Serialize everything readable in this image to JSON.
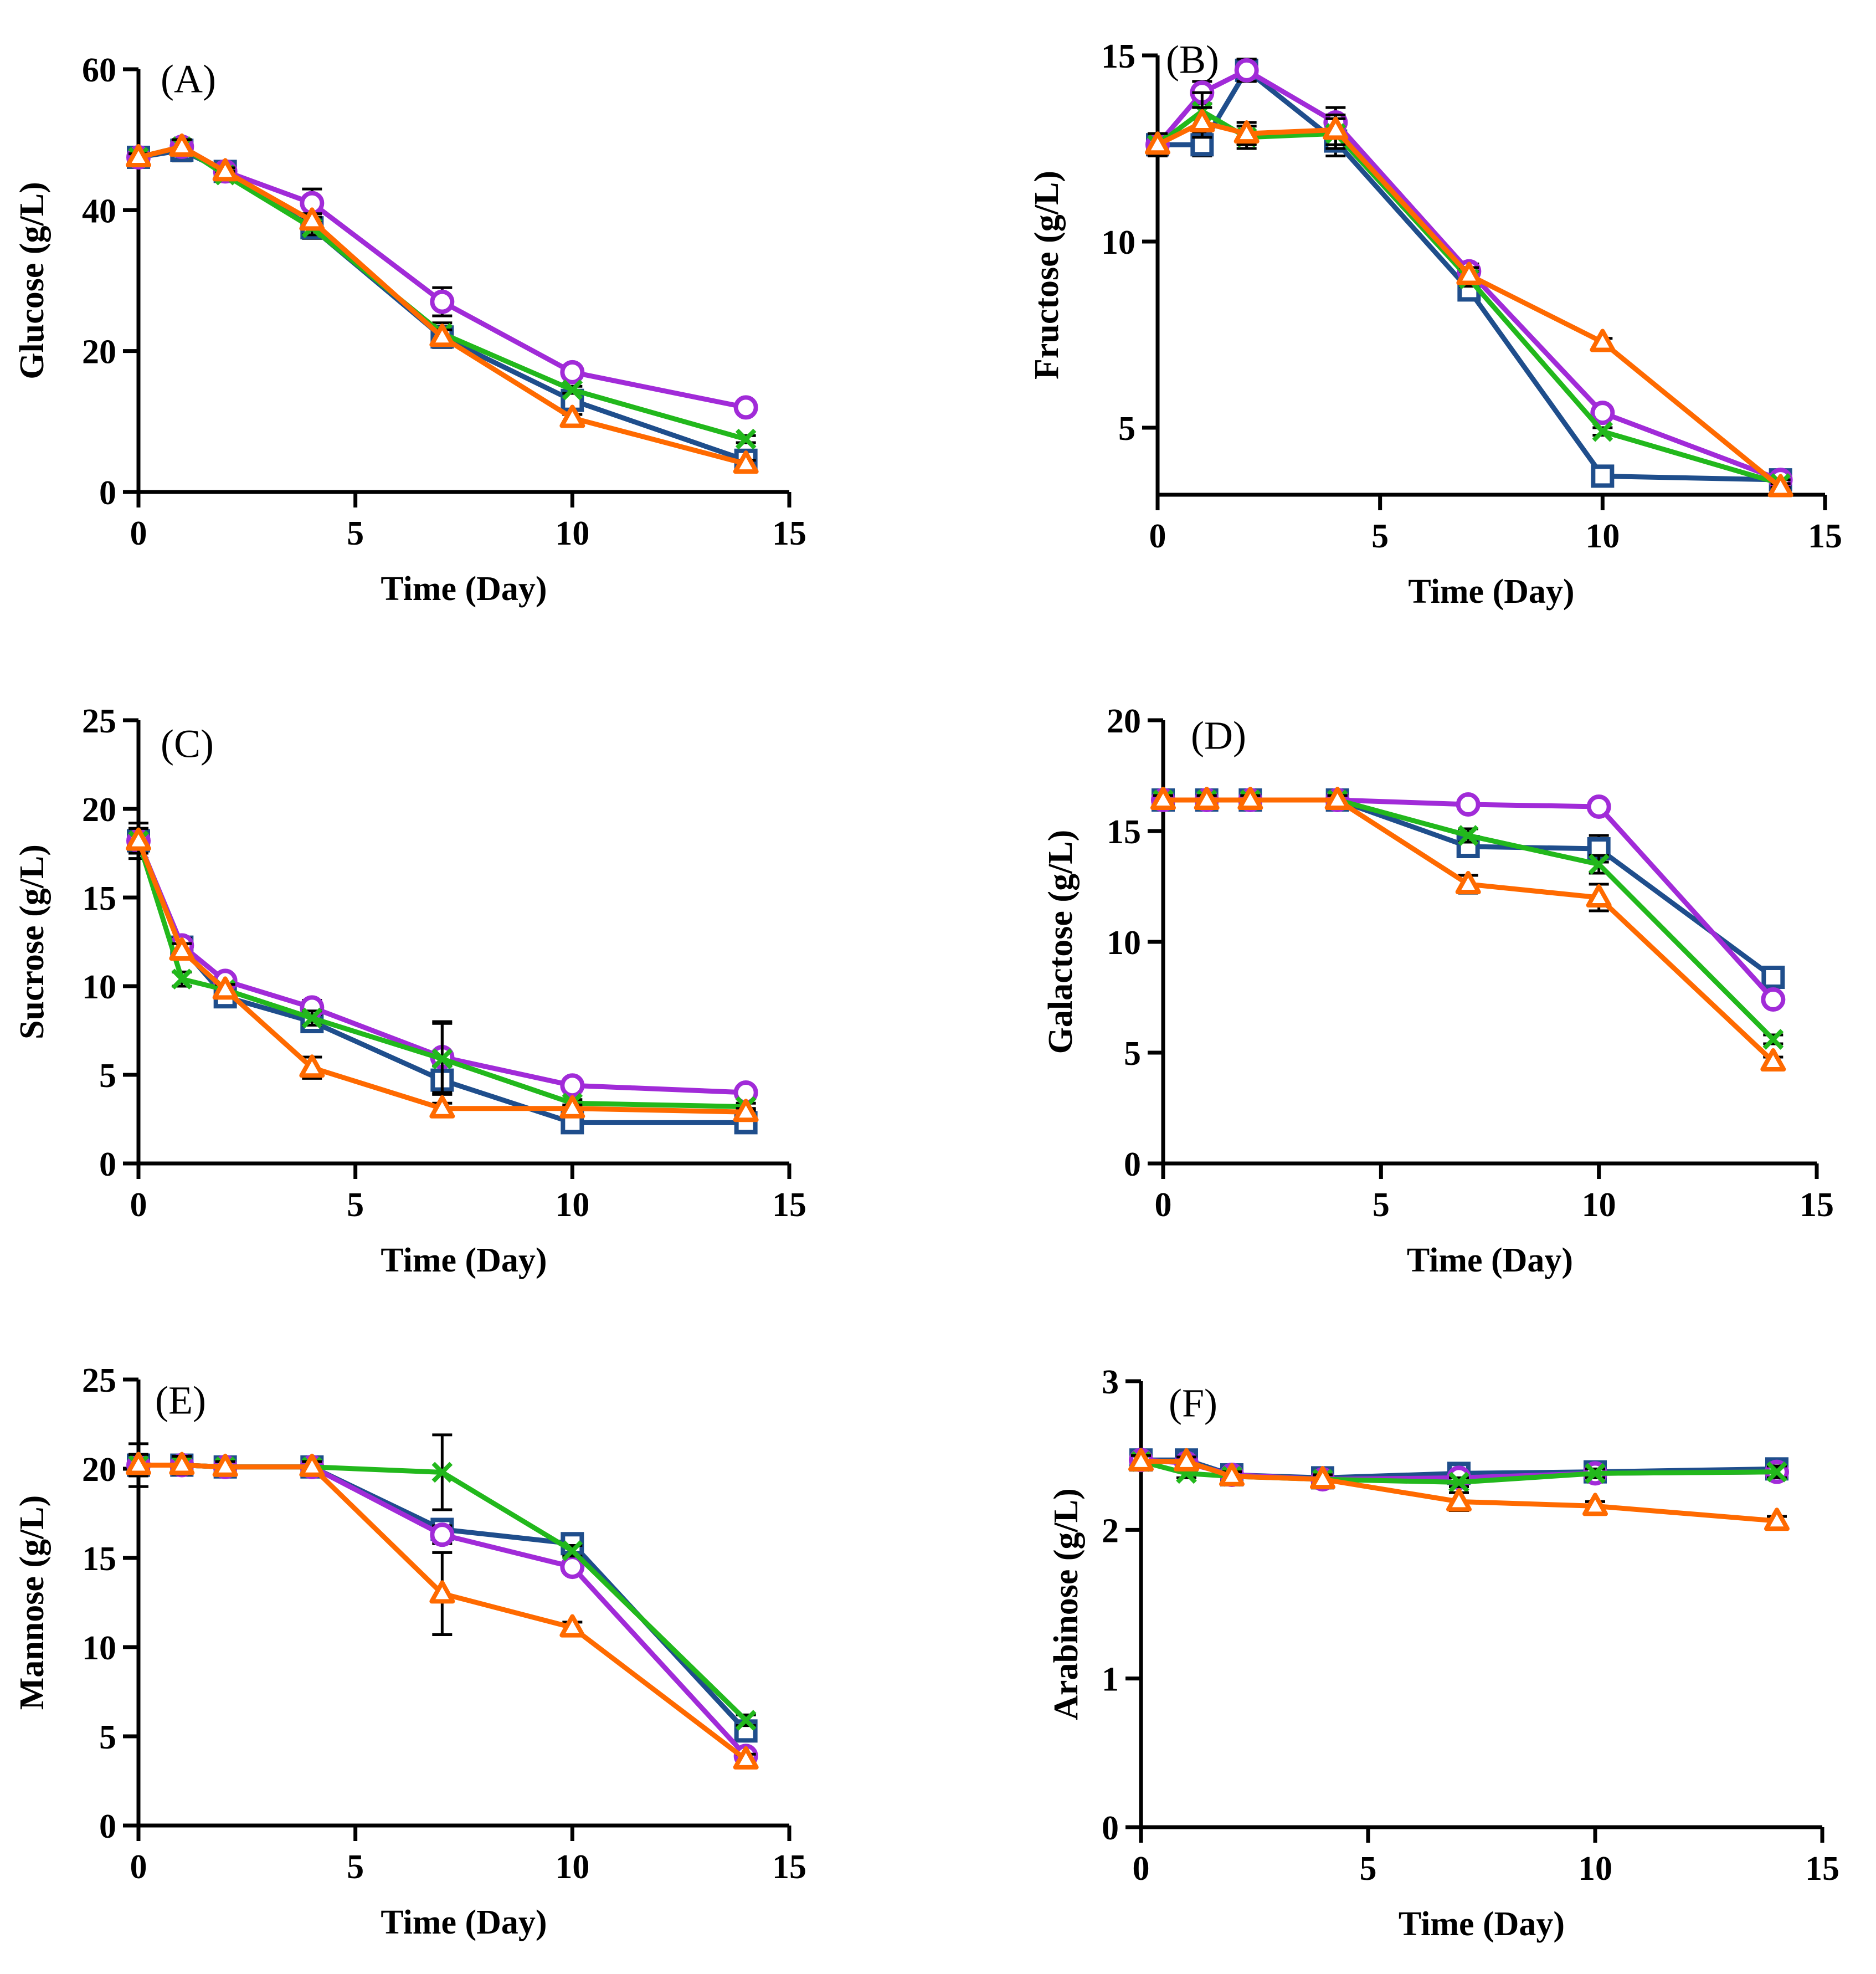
{
  "colors": {
    "series_square": "#1f4e8c",
    "series_circle": "#a12bd8",
    "series_cross": "#22b81c",
    "series_triangle": "#ff6a00",
    "axis": "#000000"
  },
  "series_markers": [
    "square",
    "circle",
    "cross",
    "triangle"
  ],
  "chart_data": [
    {
      "type": "line",
      "panel": "(A)",
      "xlabel": "Time (Day)",
      "ylabel": "Glucose (g/L)",
      "xlim": [
        0,
        15
      ],
      "ylim": [
        0,
        60
      ],
      "xticks": [
        0,
        5,
        10,
        15
      ],
      "yticks": [
        0,
        20,
        40,
        60
      ],
      "grid": false,
      "x": [
        0,
        1,
        2,
        4,
        7,
        10,
        14
      ],
      "series": [
        {
          "name": "square",
          "values": [
            47.5,
            48.5,
            45.5,
            37.5,
            22.0,
            13.0,
            4.5
          ],
          "errors": [
            1.0,
            1.5,
            0.5,
            1.5,
            1.5,
            0.5,
            0.5
          ]
        },
        {
          "name": "circle",
          "values": [
            47.5,
            49.0,
            45.5,
            41.0,
            27.0,
            17.0,
            12.0
          ],
          "errors": [
            0.5,
            1.0,
            0.5,
            2.0,
            2.0,
            0.5,
            0.5
          ]
        },
        {
          "name": "cross",
          "values": [
            47.5,
            49.0,
            45.0,
            37.5,
            22.5,
            14.5,
            7.5
          ],
          "errors": [
            0.5,
            1.0,
            0.5,
            1.0,
            1.5,
            0.5,
            0.5
          ]
        },
        {
          "name": "triangle",
          "values": [
            47.5,
            49.0,
            45.5,
            38.5,
            22.0,
            10.5,
            4.0
          ],
          "errors": [
            0.5,
            1.0,
            0.5,
            1.0,
            1.0,
            0.5,
            0.5
          ]
        }
      ]
    },
    {
      "type": "line",
      "panel": "(B)",
      "xlabel": "Time (Day)",
      "ylabel": "Fructose (g/L)",
      "xlim": [
        0,
        15
      ],
      "ylim": [
        3.2,
        15
      ],
      "xticks": [
        0,
        5,
        10,
        15
      ],
      "yticks": [
        5,
        10,
        15
      ],
      "grid": false,
      "x": [
        0,
        1,
        2,
        4,
        7,
        10,
        14
      ],
      "series": [
        {
          "name": "square",
          "values": [
            12.6,
            12.6,
            14.6,
            12.7,
            8.7,
            3.7,
            3.6
          ],
          "errors": [
            0.3,
            0.3,
            0.3,
            0.4,
            0.2,
            0.1,
            0.1
          ]
        },
        {
          "name": "circle",
          "values": [
            12.6,
            14.0,
            14.6,
            13.2,
            9.2,
            5.4,
            3.6
          ],
          "errors": [
            0.3,
            0.3,
            0.3,
            0.4,
            0.2,
            0.1,
            0.1
          ]
        },
        {
          "name": "cross",
          "values": [
            12.6,
            13.5,
            12.8,
            12.9,
            9.0,
            4.9,
            3.5
          ],
          "errors": [
            0.3,
            0.5,
            0.3,
            0.4,
            0.2,
            0.1,
            0.1
          ]
        },
        {
          "name": "triangle",
          "values": [
            12.6,
            13.2,
            12.9,
            13.0,
            9.1,
            7.3,
            3.4
          ],
          "errors": [
            0.3,
            0.4,
            0.3,
            0.4,
            0.2,
            0.1,
            0.1
          ]
        }
      ]
    },
    {
      "type": "line",
      "panel": "(C)",
      "xlabel": "Time (Day)",
      "ylabel": "Sucrose (g/L)",
      "xlim": [
        0,
        15
      ],
      "ylim": [
        0,
        25
      ],
      "xticks": [
        0,
        5,
        10,
        15
      ],
      "yticks": [
        0,
        5,
        10,
        15,
        20,
        25
      ],
      "grid": false,
      "x": [
        0,
        1,
        2,
        4,
        7,
        10,
        14
      ],
      "series": [
        {
          "name": "square",
          "values": [
            18.2,
            12.2,
            9.4,
            8.0,
            4.7,
            2.3,
            2.3
          ],
          "errors": [
            1.0,
            0.4,
            0.3,
            0.4,
            0.8,
            0.2,
            0.2
          ]
        },
        {
          "name": "circle",
          "values": [
            18.2,
            12.3,
            10.3,
            8.8,
            6.0,
            4.4,
            4.0
          ],
          "errors": [
            0.7,
            0.4,
            0.3,
            0.4,
            2.0,
            0.2,
            0.2
          ]
        },
        {
          "name": "cross",
          "values": [
            18.2,
            10.4,
            9.8,
            8.2,
            5.9,
            3.4,
            3.2
          ],
          "errors": [
            0.7,
            0.4,
            0.3,
            0.4,
            2.0,
            0.2,
            0.2
          ]
        },
        {
          "name": "triangle",
          "values": [
            18.2,
            12.0,
            9.8,
            5.4,
            3.1,
            3.1,
            2.9
          ],
          "errors": [
            0.7,
            0.4,
            0.3,
            0.6,
            0.3,
            0.2,
            0.2
          ]
        }
      ]
    },
    {
      "type": "line",
      "panel": "(D)",
      "xlabel": "Time (Day)",
      "ylabel": "Galactose (g/L)",
      "xlim": [
        0,
        15
      ],
      "ylim": [
        0,
        20
      ],
      "xticks": [
        0,
        5,
        10,
        15
      ],
      "yticks": [
        0,
        5,
        10,
        15,
        20
      ],
      "grid": false,
      "x": [
        0,
        1,
        2,
        4,
        7,
        10,
        14
      ],
      "series": [
        {
          "name": "square",
          "values": [
            16.4,
            16.4,
            16.4,
            16.4,
            14.3,
            14.2,
            8.4
          ],
          "errors": [
            0.2,
            0.2,
            0.2,
            0.2,
            0.4,
            0.6,
            0.2
          ]
        },
        {
          "name": "circle",
          "values": [
            16.4,
            16.4,
            16.4,
            16.4,
            16.2,
            16.1,
            7.4
          ],
          "errors": [
            0.2,
            0.2,
            0.2,
            0.2,
            0.2,
            0.2,
            0.2
          ]
        },
        {
          "name": "cross",
          "values": [
            16.4,
            16.4,
            16.4,
            16.4,
            14.8,
            13.5,
            5.6
          ],
          "errors": [
            0.2,
            0.2,
            0.2,
            0.2,
            0.3,
            0.4,
            0.2
          ]
        },
        {
          "name": "triangle",
          "values": [
            16.4,
            16.4,
            16.4,
            16.4,
            12.6,
            12.0,
            4.6
          ],
          "errors": [
            0.2,
            0.2,
            0.2,
            0.2,
            0.4,
            0.6,
            0.2
          ]
        }
      ]
    },
    {
      "type": "line",
      "panel": "(E)",
      "xlabel": "Time (Day)",
      "ylabel": "Mannose (g/L)",
      "xlim": [
        0,
        15
      ],
      "ylim": [
        0,
        25
      ],
      "xticks": [
        0,
        5,
        10,
        15
      ],
      "yticks": [
        0,
        5,
        10,
        15,
        20,
        25
      ],
      "grid": false,
      "x": [
        0,
        1,
        2,
        4,
        7,
        10,
        14
      ],
      "series": [
        {
          "name": "square",
          "values": [
            20.2,
            20.2,
            20.1,
            20.1,
            16.6,
            15.8,
            5.3
          ],
          "errors": [
            1.2,
            0.5,
            0.3,
            0.3,
            0.5,
            0.3,
            0.3
          ]
        },
        {
          "name": "circle",
          "values": [
            20.2,
            20.2,
            20.1,
            20.1,
            16.3,
            14.5,
            3.9
          ],
          "errors": [
            0.6,
            0.5,
            0.3,
            0.3,
            0.5,
            0.3,
            0.3
          ]
        },
        {
          "name": "cross",
          "values": [
            20.2,
            20.2,
            20.1,
            20.1,
            19.8,
            15.4,
            5.9
          ],
          "errors": [
            0.6,
            0.5,
            0.3,
            0.3,
            2.1,
            0.3,
            0.3
          ]
        },
        {
          "name": "triangle",
          "values": [
            20.2,
            20.2,
            20.1,
            20.1,
            13.0,
            11.1,
            3.7
          ],
          "errors": [
            0.6,
            0.5,
            0.3,
            0.3,
            2.3,
            0.3,
            0.3
          ]
        }
      ]
    },
    {
      "type": "line",
      "panel": "(F)",
      "xlabel": "Time (Day)",
      "ylabel": "Arabinose (g/L)",
      "xlim": [
        0,
        15
      ],
      "ylim": [
        0,
        3
      ],
      "xticks": [
        0,
        5,
        10,
        15
      ],
      "yticks": [
        0,
        1,
        2,
        3
      ],
      "grid": false,
      "x": [
        0,
        1,
        2,
        4,
        7,
        10,
        14
      ],
      "series": [
        {
          "name": "square",
          "values": [
            2.47,
            2.47,
            2.37,
            2.35,
            2.38,
            2.39,
            2.41
          ],
          "errors": [
            0.04,
            0.04,
            0.03,
            0.03,
            0.03,
            0.03,
            0.05
          ]
        },
        {
          "name": "circle",
          "values": [
            2.47,
            2.45,
            2.37,
            2.34,
            2.35,
            2.38,
            2.39
          ],
          "errors": [
            0.04,
            0.04,
            0.03,
            0.03,
            0.03,
            0.03,
            0.04
          ]
        },
        {
          "name": "cross",
          "values": [
            2.46,
            2.38,
            2.36,
            2.34,
            2.32,
            2.38,
            2.39
          ],
          "errors": [
            0.04,
            0.03,
            0.03,
            0.03,
            0.03,
            0.03,
            0.04
          ]
        },
        {
          "name": "triangle",
          "values": [
            2.46,
            2.46,
            2.36,
            2.34,
            2.19,
            2.16,
            2.06
          ],
          "errors": [
            0.04,
            0.03,
            0.03,
            0.03,
            0.06,
            0.03,
            0.03
          ]
        }
      ]
    }
  ]
}
